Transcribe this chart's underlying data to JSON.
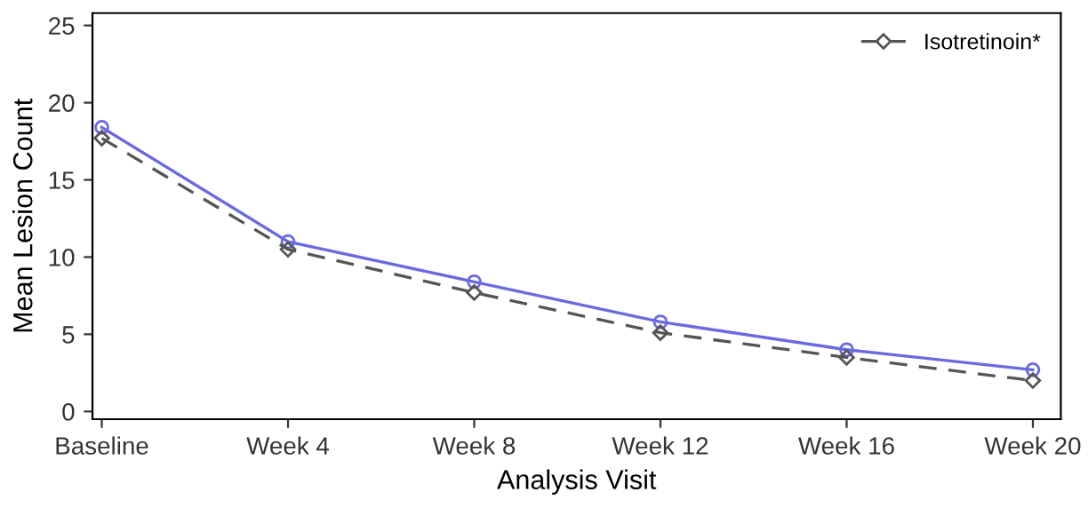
{
  "chart_data": {
    "type": "line",
    "xlabel": "Analysis Visit",
    "ylabel": "Mean Lesion Count",
    "categories": [
      "Baseline",
      "Week 4",
      "Week 8",
      "Week 12",
      "Week 16",
      "Week 20"
    ],
    "series": [
      {
        "color": "#6a6ae0",
        "marker": "circle",
        "line_style": "solid",
        "values": [
          18.4,
          11.0,
          8.4,
          5.8,
          4.0,
          2.7
        ]
      },
      {
        "name": "Isotretinoin*",
        "color": "#555555",
        "marker": "diamond",
        "line_style": "dashed",
        "values": [
          17.7,
          10.5,
          7.7,
          5.1,
          3.5,
          2.0
        ]
      }
    ],
    "ylim": [
      -0.5,
      25.8
    ],
    "yticks": [
      0,
      5,
      10,
      15,
      20,
      25
    ],
    "grid": false,
    "legend": "top right"
  }
}
